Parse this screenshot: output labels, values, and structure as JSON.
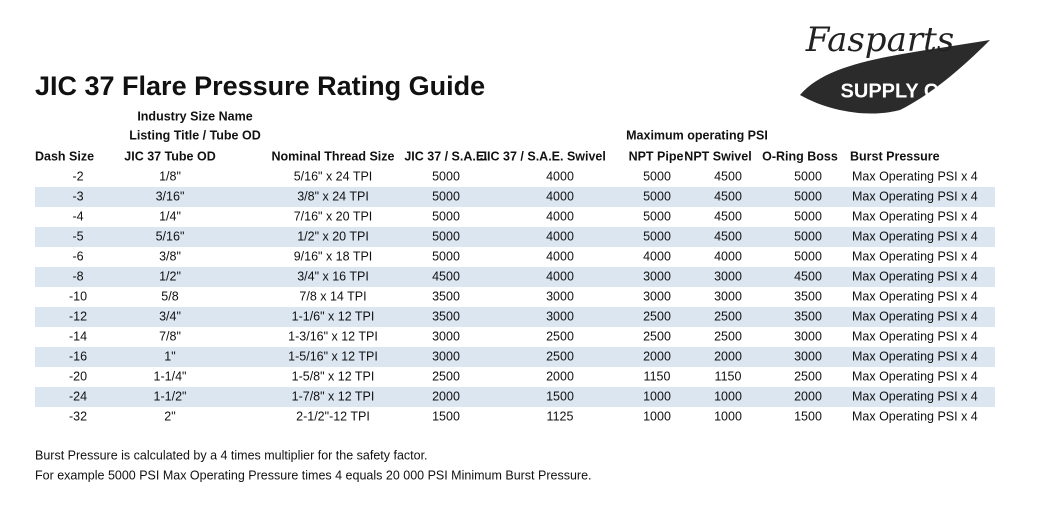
{
  "logo": {
    "line1": "Fasparts",
    "line2": "SUPPLY CO."
  },
  "title": "JIC 37 Flare Pressure Rating Guide",
  "group_headers": {
    "size_line1": "Industry Size Name",
    "size_line2": "Listing Title / Tube OD",
    "psi": "Maximum operating PSI"
  },
  "table": {
    "columns": [
      "Dash Size",
      "JIC 37 Tube OD",
      "Nominal Thread Size",
      "JIC 37 / S.A.E.",
      "JIC 37 / S.A.E. Swivel",
      "NPT Pipe",
      "NPT Swivel",
      "O-Ring Boss",
      "Burst Pressure"
    ],
    "rows": [
      [
        "-2",
        "1/8\"",
        "5/16\" x 24 TPI",
        5000,
        4000,
        5000,
        4500,
        5000,
        "Max Operating PSI x 4"
      ],
      [
        "-3",
        "3/16\"",
        "3/8\" x 24 TPI",
        5000,
        4000,
        5000,
        4500,
        5000,
        "Max Operating PSI x 4"
      ],
      [
        "-4",
        "1/4\"",
        "7/16\" x 20 TPI",
        5000,
        4000,
        5000,
        4500,
        5000,
        "Max Operating PSI x 4"
      ],
      [
        "-5",
        "5/16\"",
        "1/2\" x 20 TPI",
        5000,
        4000,
        5000,
        4500,
        5000,
        "Max Operating PSI x 4"
      ],
      [
        "-6",
        "3/8\"",
        "9/16\" x 18 TPI",
        5000,
        4000,
        4000,
        4000,
        5000,
        "Max Operating PSI x 4"
      ],
      [
        "-8",
        "1/2\"",
        "3/4\" x 16 TPI",
        4500,
        4000,
        3000,
        3000,
        4500,
        "Max Operating PSI x 4"
      ],
      [
        "-10",
        "5/8",
        "7/8 x 14 TPI",
        3500,
        3000,
        3000,
        3000,
        3500,
        "Max Operating PSI x 4"
      ],
      [
        "-12",
        "3/4\"",
        "1-1/6\" x 12 TPI",
        3500,
        3000,
        2500,
        2500,
        3500,
        "Max Operating PSI x 4"
      ],
      [
        "-14",
        "7/8\"",
        "1-3/16\" x 12 TPI",
        3000,
        2500,
        2500,
        2500,
        3000,
        "Max Operating PSI x 4"
      ],
      [
        "-16",
        "1\"",
        "1-5/16\" x 12 TPI",
        3000,
        2500,
        2000,
        2000,
        3000,
        "Max Operating PSI x 4"
      ],
      [
        "-20",
        "1-1/4\"",
        "1-5/8\" x 12 TPI",
        2500,
        2000,
        1150,
        1150,
        2500,
        "Max Operating PSI x 4"
      ],
      [
        "-24",
        "1-1/2\"",
        "1-7/8\" x 12 TPI",
        2000,
        1500,
        1000,
        1000,
        2000,
        "Max Operating PSI x 4"
      ],
      [
        "-32",
        "2\"",
        "2-1/2\"-12 TPI",
        1500,
        1125,
        1000,
        1000,
        1500,
        "Max Operating PSI x 4"
      ]
    ]
  },
  "notes": [
    "Burst Pressure is calculated by a 4 times multiplier for the safety factor.",
    "For example 5000 PSI Max Operating Pressure times 4 equals 20 000 PSI Minimum Burst Pressure."
  ]
}
